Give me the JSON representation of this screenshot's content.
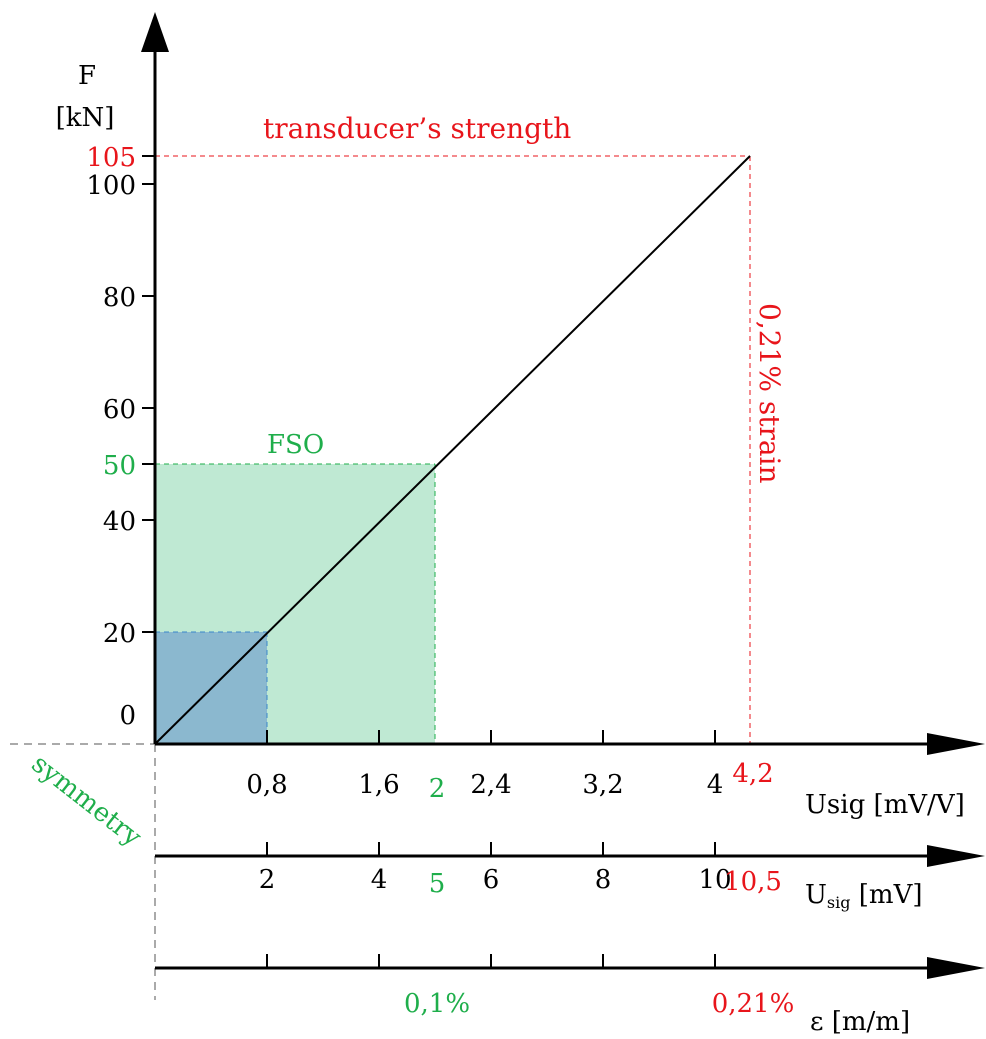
{
  "colors": {
    "axis": "#000000",
    "accent_red": "#e8151b",
    "accent_green": "#1fae4b",
    "fso_fill": "#bfe9d3",
    "small_fill": "#8bb8cf",
    "dash_gray": "#555555"
  },
  "labels": {
    "force_symbol": "F",
    "force_unit": "[kN]",
    "strength": "transducer’s strength",
    "strain_vertical": "0,21% strain",
    "fso": "FSO",
    "symmetry": "symmetry",
    "axis1_label": "Usig [mV/V]",
    "axis2_label_main": "U",
    "axis2_label_sub": "sig",
    "axis2_label_unit": " [mV]",
    "axis3_label": "ε [m/m]"
  },
  "chart_data": {
    "type": "line",
    "y_axis": {
      "label": "F [kN]",
      "range": [
        0,
        105
      ],
      "ticks": [
        {
          "value": 0,
          "label": "0"
        },
        {
          "value": 20,
          "label": "20"
        },
        {
          "value": 40,
          "label": "40"
        },
        {
          "value": 60,
          "label": "60"
        },
        {
          "value": 80,
          "label": "80"
        },
        {
          "value": 100,
          "label": "100"
        }
      ],
      "highlight_ticks": [
        {
          "value": 50,
          "label": "50",
          "color": "green"
        },
        {
          "value": 105,
          "label": "105",
          "color": "red"
        }
      ]
    },
    "x_axes": [
      {
        "name": "Usig [mV/V]",
        "ticks": [
          {
            "value": 0.8,
            "label": "0,8"
          },
          {
            "value": 1.6,
            "label": "1,6"
          },
          {
            "value": 2.4,
            "label": "2,4"
          },
          {
            "value": 3.2,
            "label": "3,2"
          },
          {
            "value": 4,
            "label": "4"
          }
        ],
        "highlight_ticks": [
          {
            "value": 2,
            "label": "2",
            "color": "green"
          },
          {
            "value": 4.2,
            "label": "4,2",
            "color": "red"
          }
        ]
      },
      {
        "name": "Usig [mV]",
        "ticks": [
          {
            "value": 2,
            "label": "2"
          },
          {
            "value": 4,
            "label": "4"
          },
          {
            "value": 6,
            "label": "6"
          },
          {
            "value": 8,
            "label": "8"
          },
          {
            "value": 10,
            "label": "10"
          }
        ],
        "highlight_ticks": [
          {
            "value": 5,
            "label": "5",
            "color": "green"
          },
          {
            "value": 10.5,
            "label": "10,5",
            "color": "red"
          }
        ]
      },
      {
        "name": "ε [m/m]",
        "ticks": [
          {
            "value": 0.04,
            "label": ""
          },
          {
            "value": 0.08,
            "label": ""
          },
          {
            "value": 0.12,
            "label": ""
          },
          {
            "value": 0.16,
            "label": ""
          },
          {
            "value": 0.2,
            "label": ""
          }
        ],
        "highlight_ticks": [
          {
            "value": 0.1,
            "label": "0,1%",
            "color": "green"
          },
          {
            "value": 0.21,
            "label": "0,21%",
            "color": "red"
          }
        ]
      }
    ],
    "series": [
      {
        "x": [
          0,
          4.2
        ],
        "y": [
          0,
          105
        ]
      }
    ],
    "regions": [
      {
        "label": "FSO",
        "x": [
          0,
          2
        ],
        "y": [
          0,
          50
        ],
        "color": "green"
      },
      {
        "label": "",
        "x": [
          0,
          0.8
        ],
        "y": [
          0,
          20
        ],
        "color": "blue"
      }
    ]
  }
}
